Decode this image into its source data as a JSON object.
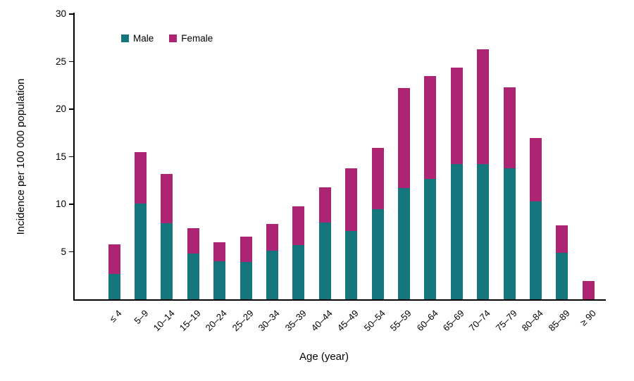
{
  "chart_data": {
    "type": "bar",
    "stacked": true,
    "title": "",
    "xlabel": "Age (year)",
    "ylabel": "Incidence per 100 000 population",
    "ylim": [
      0,
      30
    ],
    "yticks": [
      5,
      10,
      15,
      20,
      25,
      30
    ],
    "grid": false,
    "legend_position": "top-left-inside",
    "categories": [
      "≤ 4",
      "5–9",
      "10–14",
      "15–19",
      "20–24",
      "25–29",
      "30–34",
      "35–39",
      "40–44",
      "45–49",
      "50–54",
      "55–59",
      "60–64",
      "65–69",
      "70–74",
      "75–79",
      "80–84",
      "85–89",
      "≥ 90"
    ],
    "series": [
      {
        "name": "Male",
        "color": "#16767e",
        "values": [
          2.7,
          10.1,
          8.0,
          4.8,
          4.0,
          3.9,
          5.1,
          5.7,
          8.1,
          7.2,
          9.5,
          11.7,
          12.7,
          14.2,
          14.2,
          13.8,
          10.3,
          4.9,
          0.0
        ]
      },
      {
        "name": "Female",
        "color": "#ad2472",
        "values": [
          3.1,
          5.4,
          5.2,
          2.7,
          2.0,
          2.7,
          2.8,
          4.1,
          3.7,
          6.6,
          6.4,
          10.5,
          10.8,
          10.2,
          12.1,
          8.5,
          6.7,
          2.9,
          1.9
        ]
      }
    ]
  }
}
